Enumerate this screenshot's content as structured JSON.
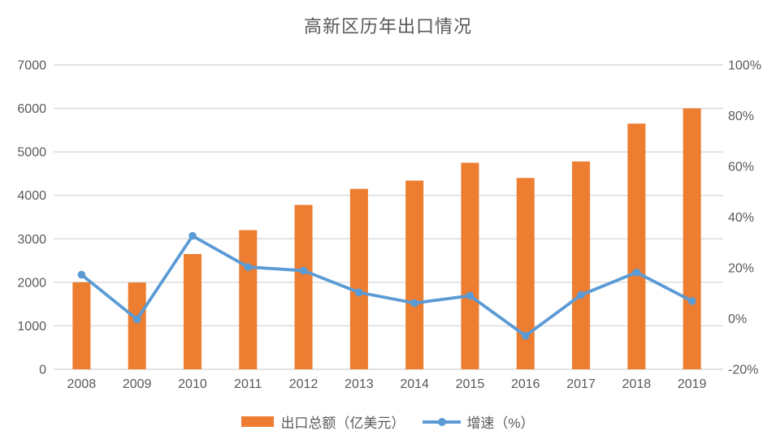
{
  "chart_data": {
    "type": "bar",
    "title": "高新区历年出口情况",
    "categories": [
      "2008",
      "2009",
      "2010",
      "2011",
      "2012",
      "2013",
      "2014",
      "2015",
      "2016",
      "2017",
      "2018",
      "2019"
    ],
    "series": [
      {
        "name": "出口总额（亿美元）",
        "type": "bar",
        "axis": "left",
        "color": "#ED7D31",
        "values": [
          2000,
          1995,
          2650,
          3200,
          3780,
          4150,
          4340,
          4750,
          4400,
          4780,
          5650,
          6000
        ]
      },
      {
        "name": "增速（%）",
        "type": "line",
        "axis": "right",
        "color": "#5B9BD5",
        "values": [
          17.3,
          -0.3,
          32.6,
          20.3,
          18.9,
          10.3,
          6.1,
          9.0,
          -6.8,
          9.3,
          18.2,
          6.9
        ]
      }
    ],
    "left_axis": {
      "min": 0,
      "max": 7000,
      "step": 1000,
      "tick_labels": [
        "0",
        "1000",
        "2000",
        "3000",
        "4000",
        "5000",
        "6000",
        "7000"
      ]
    },
    "right_axis": {
      "min": -20,
      "max": 100,
      "step": 20,
      "tick_labels": [
        "-20%",
        "0%",
        "20%",
        "40%",
        "60%",
        "80%",
        "100%"
      ]
    },
    "grid": true,
    "legend_position": "bottom",
    "colors": {
      "grid": "#D9D9D9",
      "axis_text": "#595959",
      "title_text": "#595959",
      "background": "#FFFFFF"
    }
  }
}
